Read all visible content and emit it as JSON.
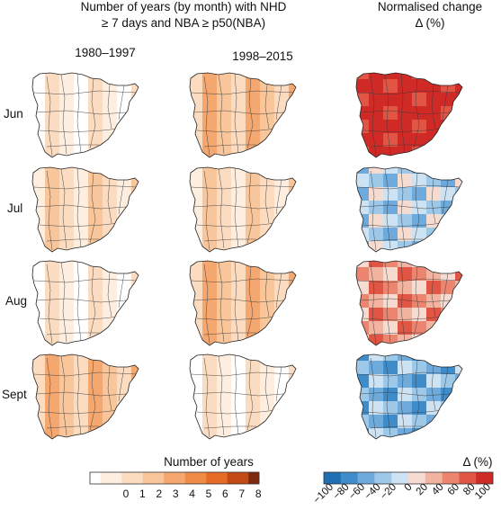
{
  "header": {
    "title_line1": "Number of years (by month) with NHD",
    "title_line2": "≥ 7 days and NBA ≥ p50(NBA)",
    "right_line1": "Normalised change",
    "right_line2": "Δ (%)"
  },
  "columns": [
    {
      "label": "1980–1997"
    },
    {
      "label": "1998–2015"
    }
  ],
  "rows": [
    {
      "label": "Jun",
      "level": [
        1,
        3,
        9
      ]
    },
    {
      "label": "Jul",
      "level": [
        2,
        2,
        3
      ]
    },
    {
      "label": "Aug",
      "level": [
        1,
        3,
        6
      ]
    },
    {
      "label": "Sept",
      "level": [
        3,
        1,
        2
      ]
    }
  ],
  "legend_years": {
    "title": "Number of years",
    "ticks": [
      "0",
      "1",
      "2",
      "3",
      "4",
      "5",
      "6",
      "7",
      "8"
    ],
    "colors": [
      "#ffffff",
      "#fdeee0",
      "#fbdcc0",
      "#f8c69a",
      "#f4a870",
      "#ee8b46",
      "#e56b26",
      "#c24a14",
      "#7d2a10"
    ]
  },
  "legend_change": {
    "title": "Δ (%)",
    "ticks": [
      "−100",
      "−80",
      "−60",
      "−40",
      "−20",
      "0",
      "20",
      "40",
      "60",
      "80",
      "100"
    ],
    "colors": [
      "#1f6fb4",
      "#3f8ccb",
      "#6eaadb",
      "#9ec8e8",
      "#cde2f2",
      "#f6dbd0",
      "#f2b4a0",
      "#eb8570",
      "#e05544",
      "#cf2a26"
    ]
  }
}
